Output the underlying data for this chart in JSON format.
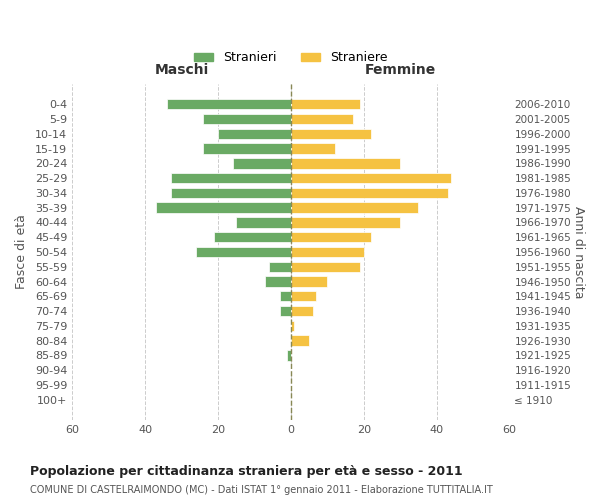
{
  "age_groups": [
    "100+",
    "95-99",
    "90-94",
    "85-89",
    "80-84",
    "75-79",
    "70-74",
    "65-69",
    "60-64",
    "55-59",
    "50-54",
    "45-49",
    "40-44",
    "35-39",
    "30-34",
    "25-29",
    "20-24",
    "15-19",
    "10-14",
    "5-9",
    "0-4"
  ],
  "birth_years": [
    "≤ 1910",
    "1911-1915",
    "1916-1920",
    "1921-1925",
    "1926-1930",
    "1931-1935",
    "1936-1940",
    "1941-1945",
    "1946-1950",
    "1951-1955",
    "1956-1960",
    "1961-1965",
    "1966-1970",
    "1971-1975",
    "1976-1980",
    "1981-1985",
    "1986-1990",
    "1991-1995",
    "1996-2000",
    "2001-2005",
    "2006-2010"
  ],
  "maschi": [
    0,
    0,
    0,
    1,
    0,
    0,
    3,
    3,
    7,
    6,
    26,
    21,
    15,
    37,
    33,
    33,
    16,
    24,
    20,
    24,
    34
  ],
  "femmine": [
    0,
    0,
    0,
    0,
    5,
    1,
    6,
    7,
    10,
    19,
    20,
    22,
    30,
    35,
    43,
    44,
    30,
    12,
    22,
    17,
    19
  ],
  "maschi_color": "#6aaa64",
  "femmine_color": "#f5c242",
  "background_color": "#ffffff",
  "grid_color": "#cccccc",
  "title": "Popolazione per cittadinanza straniera per età e sesso - 2011",
  "subtitle": "COMUNE DI CASTELRAIMONDO (MC) - Dati ISTAT 1° gennaio 2011 - Elaborazione TUTTITALIA.IT",
  "xlabel_maschi": "Maschi",
  "xlabel_femmine": "Femmine",
  "ylabel_left": "Fasce di età",
  "ylabel_right": "Anni di nascita",
  "legend_maschi": "Stranieri",
  "legend_femmine": "Straniere",
  "xlim": 60,
  "axis_ticks": [
    -60,
    -40,
    -20,
    0,
    20,
    40,
    60
  ],
  "axis_labels": [
    "60",
    "40",
    "20",
    "0",
    "20",
    "40",
    "60"
  ]
}
